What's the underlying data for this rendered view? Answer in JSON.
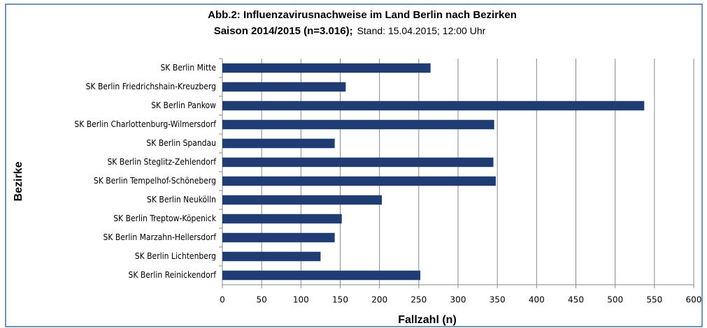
{
  "chart_data": {
    "type": "bar",
    "orientation": "horizontal",
    "title": "Abb.2:  Influenzavirusnachweise  im Land Berlin nach Bezirken",
    "subtitle": "Saison 2014/2015  (n=3.016);",
    "date_note": "Stand: 15.04.2015; 12:00 Uhr",
    "x_label": "Fallzahl (n)",
    "y_label": "Bezirke",
    "categories": [
      "SK Berlin Mitte",
      "SK Berlin Friedrichshain-Kreuzberg",
      "SK Berlin Pankow",
      "SK Berlin Charlottenburg-Wilmersdorf",
      "SK Berlin Spandau",
      "SK Berlin Steglitz-Zehlendorf",
      "SK Berlin Tempelhof-Schöneberg",
      "SK Berlin Neukölln",
      "SK Berlin Treptow-Köpenick",
      "SK Berlin Marzahn-Hellersdorf",
      "SK Berlin Lichtenberg",
      "SK Berlin Reinickendorf"
    ],
    "values": [
      265,
      157,
      537,
      346,
      143,
      345,
      348,
      203,
      152,
      143,
      125,
      252
    ],
    "color": "#1f3d72",
    "xlim": [
      0,
      600
    ],
    "xticks": [
      0,
      50,
      100,
      150,
      200,
      250,
      300,
      350,
      400,
      450,
      500,
      550,
      600
    ],
    "grid": true
  }
}
